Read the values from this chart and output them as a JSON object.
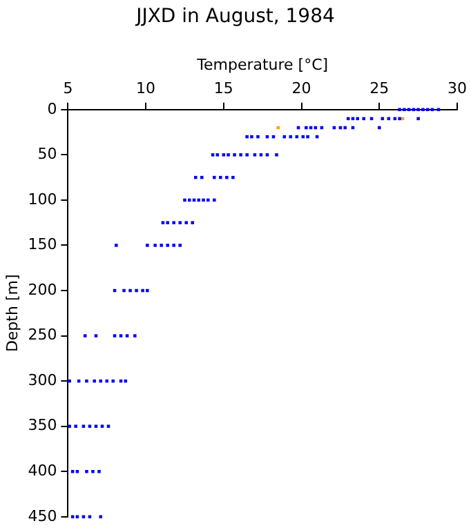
{
  "chart_data": {
    "type": "scatter",
    "title": "JJXD in August, 1984",
    "xlabel": "Temperature [°C]",
    "ylabel": "Depth [m]",
    "xlim": [
      5,
      30
    ],
    "xticks": [
      5,
      10,
      15,
      20,
      25,
      30
    ],
    "ylim": [
      450,
      0
    ],
    "yticks": [
      0,
      50,
      100,
      150,
      200,
      250,
      300,
      350,
      400,
      450
    ],
    "grid": false,
    "legend": false,
    "marker": "square",
    "series": [
      {
        "color": "#0000ff",
        "x": [
          26.3,
          26.6,
          26.9,
          27.2,
          27.5,
          27.8,
          28.1,
          28.4,
          28.8,
          23.0,
          23.3,
          23.6,
          24.0,
          24.5,
          25.2,
          25.6,
          26.0,
          26.3,
          27.5,
          19.8,
          20.3,
          20.6,
          20.9,
          21.3,
          22.1,
          22.5,
          22.8,
          23.3,
          25.0,
          16.5,
          16.8,
          17.2,
          17.8,
          18.2,
          18.9,
          19.3,
          19.7,
          20.1,
          20.4,
          21.0,
          14.3,
          14.6,
          15.0,
          15.3,
          15.7,
          16.1,
          16.5,
          17.0,
          17.4,
          17.8,
          18.4,
          13.2,
          13.6,
          14.4,
          14.8,
          15.2,
          15.6,
          12.5,
          12.8,
          13.1,
          13.4,
          13.7,
          14.0,
          14.4,
          11.1,
          11.4,
          11.8,
          12.2,
          12.6,
          13.0,
          8.1,
          10.1,
          10.6,
          11.0,
          11.4,
          11.8,
          12.2,
          8.0,
          8.6,
          9.0,
          9.4,
          9.8,
          10.1,
          6.1,
          6.8,
          8.0,
          8.4,
          8.8,
          9.3,
          5.1,
          5.7,
          6.2,
          6.7,
          7.1,
          7.5,
          7.9,
          8.4,
          8.7,
          5.1,
          5.5,
          6.0,
          6.4,
          6.8,
          7.2,
          7.6,
          5.3,
          5.6,
          6.2,
          6.6,
          7.0,
          5.3,
          5.6,
          6.0,
          6.4,
          7.1
        ],
        "values": [
          0,
          0,
          0,
          0,
          0,
          0,
          0,
          0,
          0,
          10,
          10,
          10,
          10,
          10,
          10,
          10,
          10,
          10,
          10,
          20,
          20,
          20,
          20,
          20,
          20,
          20,
          20,
          20,
          20,
          30,
          30,
          30,
          30,
          30,
          30,
          30,
          30,
          30,
          30,
          30,
          50,
          50,
          50,
          50,
          50,
          50,
          50,
          50,
          50,
          50,
          50,
          75,
          75,
          75,
          75,
          75,
          75,
          100,
          100,
          100,
          100,
          100,
          100,
          100,
          125,
          125,
          125,
          125,
          125,
          125,
          150,
          150,
          150,
          150,
          150,
          150,
          150,
          200,
          200,
          200,
          200,
          200,
          200,
          250,
          250,
          250,
          250,
          250,
          250,
          300,
          300,
          300,
          300,
          300,
          300,
          300,
          300,
          300,
          350,
          350,
          350,
          350,
          350,
          350,
          350,
          400,
          400,
          400,
          400,
          400,
          450,
          450,
          450,
          450,
          450
        ]
      },
      {
        "color": "#ffa500",
        "x": [
          18.5,
          26.5
        ],
        "values": [
          20,
          10
        ]
      }
    ]
  }
}
